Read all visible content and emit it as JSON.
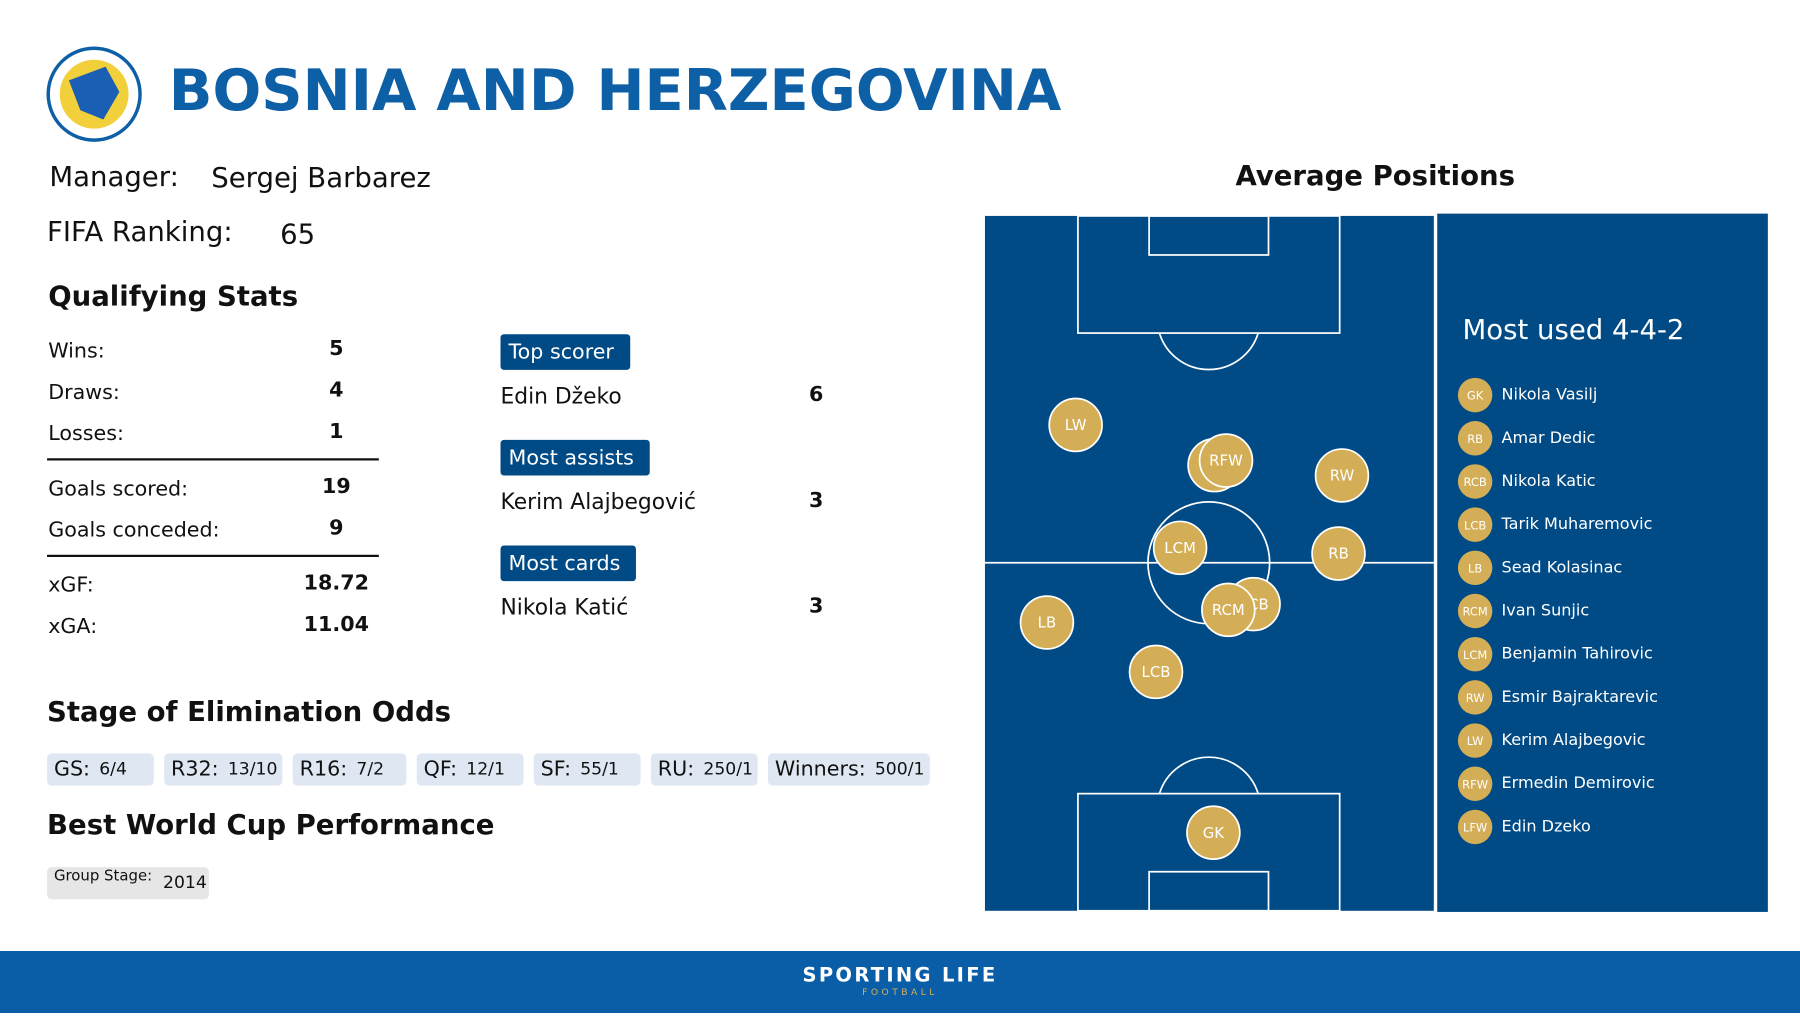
{
  "header": {
    "title": "BOSNIA AND HERZEGOVINA"
  },
  "manager": {
    "label": "Manager:",
    "value": "Sergej Barbarez"
  },
  "fifa_ranking": {
    "label": "FIFA Ranking:",
    "value": 65
  },
  "qualifying": {
    "title": "Qualifying Stats",
    "rows": [
      [
        "Wins:",
        5
      ],
      [
        "Draws:",
        4
      ],
      [
        "Losses:",
        1
      ],
      [
        "Goals scored:",
        19
      ],
      [
        "Goals conceded:",
        9
      ],
      [
        "xGF:",
        18.72
      ],
      [
        "xGA:",
        11.04
      ]
    ]
  },
  "leaders": [
    {
      "label": "Top scorer",
      "name": "Edin Džeko",
      "value": 6
    },
    {
      "label": "Most assists",
      "name": "Kerim Alajbegović",
      "value": 3
    },
    {
      "label": "Most cards",
      "name": "Nikola Katić",
      "value": 3
    }
  ],
  "odds": {
    "title": "Stage of Elimination Odds",
    "items": [
      [
        "GS:",
        "6/4"
      ],
      [
        "R32:",
        "13/10"
      ],
      [
        "R16:",
        "7/2"
      ],
      [
        "QF:",
        "12/1"
      ],
      [
        "SF:",
        "55/1"
      ],
      [
        "RU:",
        "250/1"
      ],
      [
        "Winners:",
        "500/1"
      ]
    ]
  },
  "best": {
    "title": "Best World Cup Performance",
    "label": "Group Stage:",
    "value": "2014"
  },
  "positions": {
    "title": "Average Positions",
    "formation": "Most used 4-4-2",
    "lineup": [
      [
        "GK",
        "Nikola Vasilj"
      ],
      [
        "RB",
        "Amar Dedic"
      ],
      [
        "RCB",
        "Nikola Katic"
      ],
      [
        "LCB",
        "Tarik Muharemovic"
      ],
      [
        "LB",
        "Sead Kolasinac"
      ],
      [
        "RCM",
        "Ivan Sunjic"
      ],
      [
        "LCM",
        "Benjamin Tahirovic"
      ],
      [
        "RW",
        "Esmir Bajraktarevic"
      ],
      [
        "LW",
        "Kerim Alajbegovic"
      ],
      [
        "RFW",
        "Ermedin Demirovic"
      ],
      [
        "LFW",
        "Edin Dzeko"
      ]
    ]
  },
  "footer": {
    "brand": "SPORTING LIFE",
    "sub": "FOOTBALL"
  }
}
